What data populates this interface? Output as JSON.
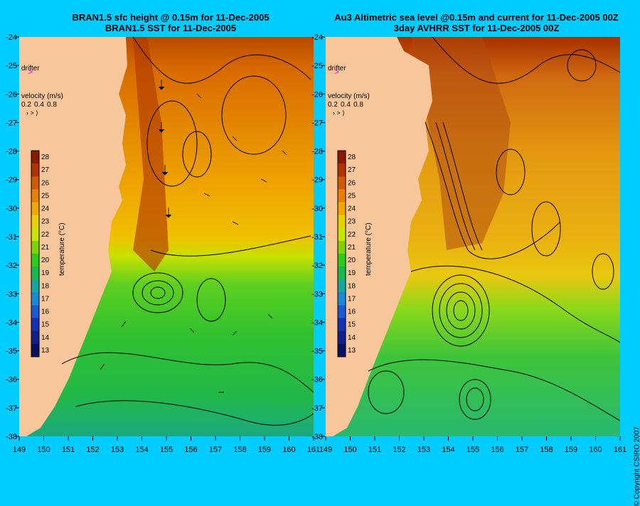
{
  "left_panel": {
    "title_line1": "BRAN1.5 sfc height @ 0.15m for 11-Dec-2005",
    "title_line2": "BRAN1.5 SST for 11-Dec-2005"
  },
  "right_panel": {
    "title_line1": "Au3 Altimetric sea level  @0.15m and current for 11-Dec-2005 00Z",
    "title_line2": "3day AVHRR SST for 11-Dec-2005 00Z"
  },
  "drifter_label": "drifter",
  "velocity_legend": {
    "label": "velocity (m/s)",
    "values": [
      "0.2",
      "0.4",
      "0.8"
    ]
  },
  "colorbar": {
    "title": "temperature (°C)",
    "ticks": [
      "28",
      "27",
      "26",
      "25",
      "24",
      "23",
      "22",
      "21",
      "20",
      "19",
      "18",
      "17",
      "16",
      "15",
      "14",
      "13"
    ],
    "colors": [
      "#8a1a00",
      "#b33300",
      "#d05a00",
      "#e88000",
      "#f0a800",
      "#e6d200",
      "#c8e600",
      "#7ed400",
      "#2ecc1a",
      "#18b850",
      "#12a8a0",
      "#1c88d8",
      "#1a5ad2",
      "#1632b4",
      "#10208a",
      "#0a1060"
    ]
  },
  "y_axis": {
    "labels": [
      "-24",
      "-25",
      "-26",
      "-27",
      "-28",
      "-29",
      "-30",
      "-31",
      "-32",
      "-33",
      "-34",
      "-35",
      "-36",
      "-37",
      "-38"
    ],
    "min": -38,
    "max": -24
  },
  "x_axis_left": {
    "labels": [
      "149",
      "150",
      "151",
      "152",
      "153",
      "154",
      "155",
      "156",
      "157",
      "158",
      "159",
      "160",
      "161"
    ],
    "min": 149,
    "max": 161
  },
  "x_axis_right": {
    "labels": [
      "149",
      "150",
      "151",
      "152",
      "153",
      "154",
      "155",
      "156",
      "157",
      "158",
      "159",
      "160",
      "161"
    ],
    "min": 149,
    "max": 161
  },
  "copyright": "© Copyright CSIRO 2007"
}
